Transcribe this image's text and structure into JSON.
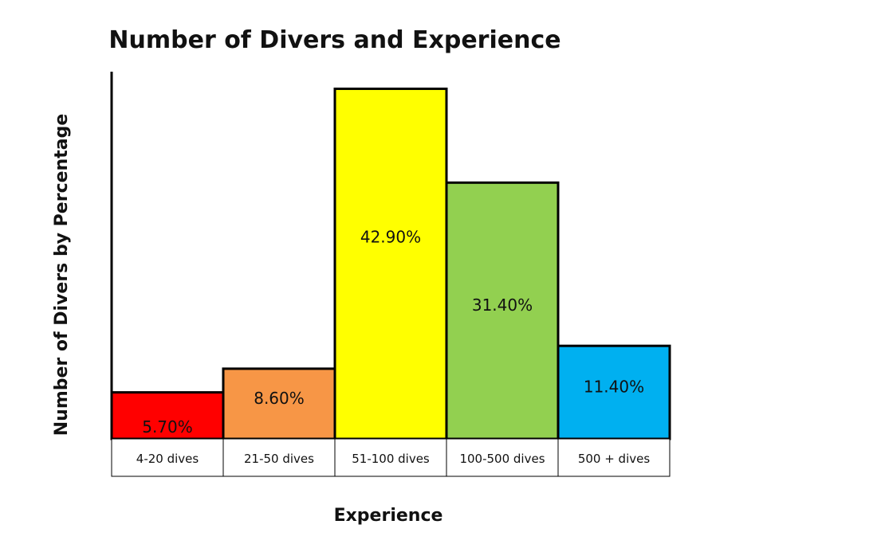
{
  "chart_data": {
    "type": "bar",
    "title": "Number of Divers and Experience",
    "xlabel": "Experience",
    "ylabel": "Number of Divers by Percentage",
    "categories": [
      "4-20 dives",
      "21-50 dives",
      "51-100 dives",
      "100-500 dives",
      "500 + dives"
    ],
    "values": [
      5.7,
      8.6,
      42.9,
      31.4,
      11.4
    ],
    "data_labels": [
      "5.70%",
      "8.60%",
      "42.90%",
      "31.40%",
      "11.40%"
    ],
    "colors": [
      "#ff0000",
      "#f79646",
      "#ffff00",
      "#92d050",
      "#00b0f0"
    ],
    "ylim": [
      0,
      53
    ],
    "grid": false,
    "legend": "none"
  }
}
